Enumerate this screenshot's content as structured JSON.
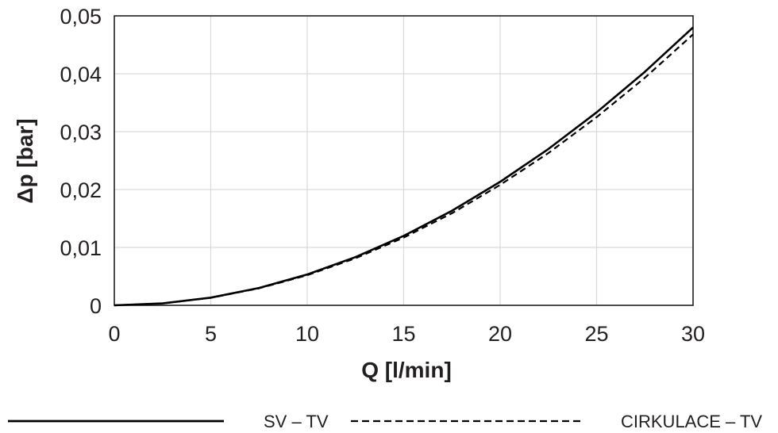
{
  "chart_data": {
    "type": "line",
    "xlabel": "Q [l/min]",
    "ylabel": "Δp [bar]",
    "xlim": [
      0,
      30
    ],
    "ylim": [
      0,
      0.05
    ],
    "x_ticks": [
      0,
      5,
      10,
      15,
      20,
      25,
      30
    ],
    "x_tick_labels": [
      "0",
      "5",
      "10",
      "15",
      "20",
      "25",
      "30"
    ],
    "y_ticks": [
      0,
      0.01,
      0.02,
      0.03,
      0.04,
      0.05
    ],
    "y_tick_labels": [
      "0",
      "0,01",
      "0,02",
      "0,03",
      "0,04",
      "0,05"
    ],
    "grid": true,
    "legend_position": "bottom",
    "colors": {
      "series": "#000000",
      "grid": "#d9d9d9",
      "axis": "#231f20"
    },
    "x": [
      0,
      2.5,
      5,
      7.5,
      10,
      12.5,
      15,
      17.5,
      20,
      22.5,
      25,
      27.5,
      30
    ],
    "series": [
      {
        "name": "SV – TV",
        "style": "solid",
        "values": [
          0,
          0.00033,
          0.00133,
          0.003,
          0.00533,
          0.00833,
          0.012,
          0.01633,
          0.02133,
          0.027,
          0.03333,
          0.04033,
          0.048
        ]
      },
      {
        "name": "CIRKULACE – TV",
        "style": "dashed",
        "values": [
          0,
          0.00033,
          0.0013,
          0.00293,
          0.0052,
          0.00813,
          0.0117,
          0.0159,
          0.0208,
          0.0263,
          0.0325,
          0.0393,
          0.0468
        ]
      }
    ]
  }
}
